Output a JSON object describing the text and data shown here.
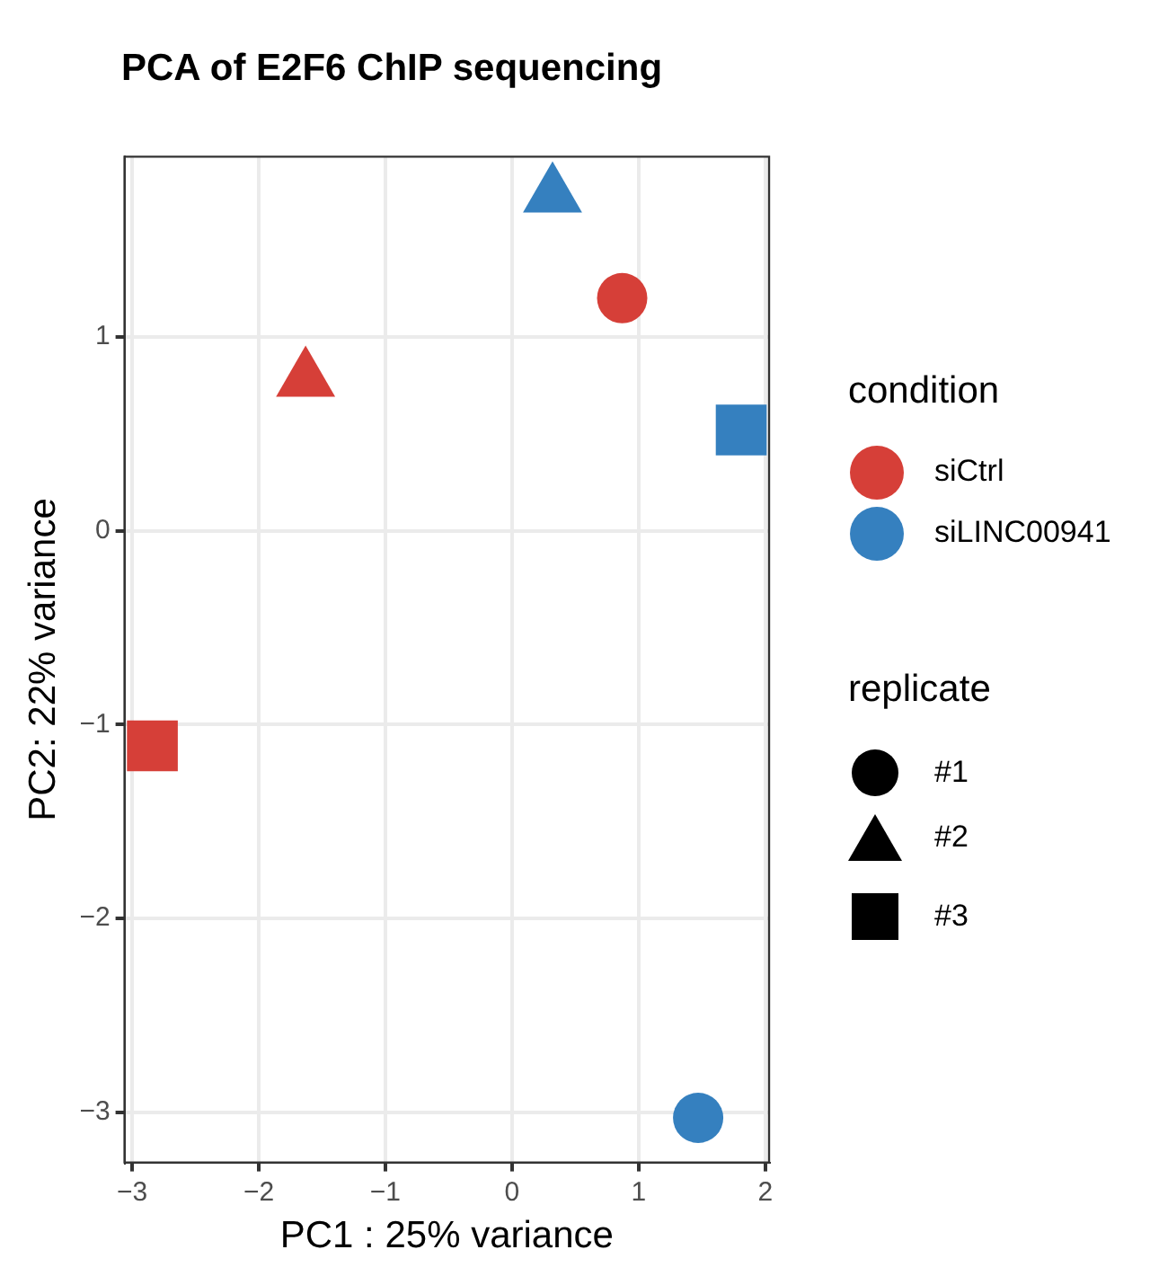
{
  "chart_data": {
    "type": "scatter",
    "title": "PCA of E2F6 ChIP sequencing",
    "xlabel": "PC1 : 25% variance",
    "ylabel": "PC2: 22% variance",
    "legend_title": "condition",
    "series": [
      {
        "name": "siCtrl",
        "color": "#d63f38",
        "x": [
          0.87,
          -1.63,
          -2.84
        ],
        "values": [
          1.2,
          0.78,
          -1.11
        ],
        "marker": [
          "circle",
          "triangle",
          "square"
        ]
      },
      {
        "name": "siLINC00941",
        "color": "#3580bf",
        "x": [
          1.47,
          0.32,
          1.81
        ],
        "values": [
          -3.03,
          1.73,
          0.52
        ],
        "marker": [
          "circle",
          "triangle",
          "square"
        ]
      }
    ],
    "annotations": [
      "replicate",
      "#1",
      "#2",
      "#3"
    ],
    "xlim": [
      -3.06,
      2.03
    ],
    "xticks": [
      -3,
      -2,
      -1,
      0,
      1,
      2
    ],
    "ylim": [
      -3.26,
      1.93
    ],
    "yticks": [
      -3,
      -2,
      -1,
      0,
      1
    ],
    "grid": true,
    "legend": "right"
  }
}
